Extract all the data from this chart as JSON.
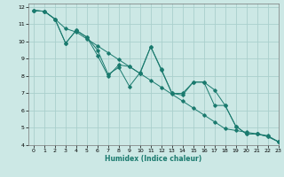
{
  "xlabel": "Humidex (Indice chaleur)",
  "ylabel": "",
  "background_color": "#cce8e5",
  "grid_color": "#aacfcc",
  "line_color": "#1a7a6e",
  "xlim": [
    -0.5,
    23
  ],
  "ylim": [
    4,
    12.2
  ],
  "yticks": [
    4,
    5,
    6,
    7,
    8,
    9,
    10,
    11,
    12
  ],
  "xticks": [
    0,
    1,
    2,
    3,
    4,
    5,
    6,
    7,
    8,
    9,
    10,
    11,
    12,
    13,
    14,
    15,
    16,
    17,
    18,
    19,
    20,
    21,
    22,
    23
  ],
  "series1_x": [
    0,
    1,
    2,
    3,
    4,
    5,
    6,
    7,
    8,
    9,
    10,
    11,
    12,
    13,
    14,
    15,
    16,
    17,
    18,
    19,
    20,
    21,
    22,
    23
  ],
  "series1_y": [
    11.8,
    11.75,
    11.3,
    9.9,
    10.65,
    10.25,
    9.2,
    8.0,
    8.65,
    8.55,
    8.15,
    9.7,
    8.35,
    7.0,
    6.9,
    7.65,
    7.65,
    7.2,
    6.3,
    5.1,
    4.65,
    4.65,
    4.5,
    4.2
  ],
  "series2_x": [
    0,
    1,
    2,
    3,
    4,
    5,
    6,
    7,
    8,
    9,
    10,
    11,
    12,
    13,
    14,
    15,
    16,
    17,
    18,
    19,
    20,
    21,
    22,
    23
  ],
  "series2_y": [
    11.8,
    11.75,
    11.3,
    10.75,
    10.55,
    10.15,
    9.75,
    9.35,
    8.95,
    8.55,
    8.15,
    7.75,
    7.35,
    6.95,
    6.55,
    6.15,
    5.75,
    5.35,
    4.95,
    4.85,
    4.75,
    4.65,
    4.55,
    4.2
  ],
  "series3_x": [
    0,
    1,
    2,
    3,
    4,
    5,
    6,
    7,
    8,
    9,
    10,
    11,
    12,
    13,
    14,
    15,
    16,
    17,
    18,
    19,
    20,
    21,
    22,
    23
  ],
  "series3_y": [
    11.8,
    11.75,
    11.3,
    9.9,
    10.65,
    10.25,
    9.5,
    8.1,
    8.5,
    7.4,
    8.2,
    9.7,
    8.4,
    7.0,
    7.0,
    7.65,
    7.65,
    6.3,
    6.3,
    5.1,
    4.65,
    4.65,
    4.5,
    4.2
  ]
}
